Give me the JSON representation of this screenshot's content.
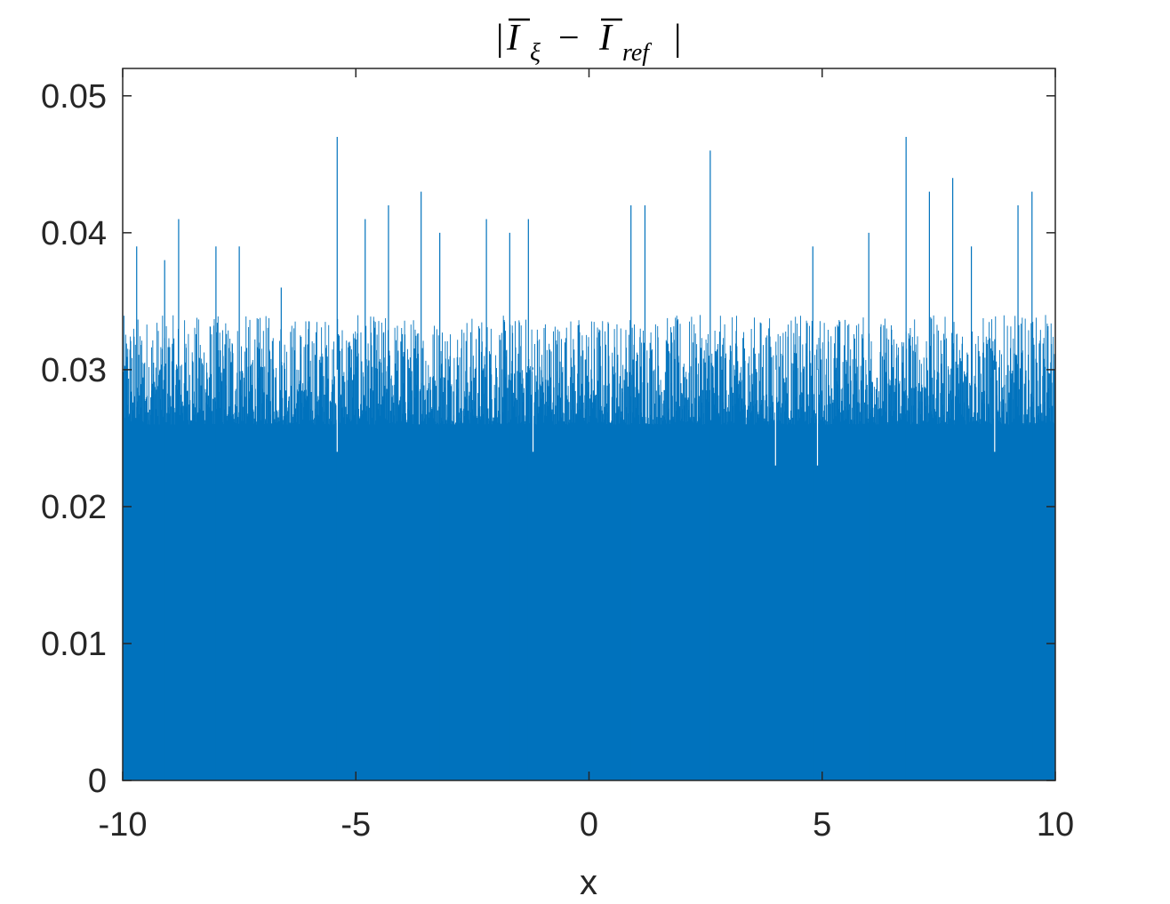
{
  "chart_data": {
    "type": "area",
    "title": "|Ī_ξ − Ī_ref|",
    "title_parts": {
      "bar_left": "|",
      "symbol_1": "I",
      "subscript_1": "ξ",
      "minus": "−",
      "symbol_2": "I",
      "subscript_2": "ref",
      "bar_right": "|"
    },
    "xlabel": "x",
    "ylabel": "",
    "xlim": [
      -10,
      10
    ],
    "ylim": [
      0,
      0.052
    ],
    "xticks": [
      -10,
      -5,
      0,
      5,
      10
    ],
    "xtick_labels": [
      "-10",
      "-5",
      "0",
      "5",
      "10"
    ],
    "yticks": [
      0,
      0.01,
      0.02,
      0.03,
      0.04,
      0.05
    ],
    "ytick_labels": [
      "0",
      "0.01",
      "0.02",
      "0.03",
      "0.04",
      "0.05"
    ],
    "grid": false,
    "series_color": "#0072BD",
    "series": [
      {
        "description": "Dense noisy signal; fill reaches ~0.025-0.027 everywhere, typical spikes to ~0.030-0.035, notable peaks listed",
        "baseline_level": 0.026,
        "typical_upper": 0.032,
        "peaks": [
          {
            "x": -9.7,
            "y": 0.039
          },
          {
            "x": -9.1,
            "y": 0.038
          },
          {
            "x": -8.8,
            "y": 0.041
          },
          {
            "x": -8.0,
            "y": 0.039
          },
          {
            "x": -7.5,
            "y": 0.039
          },
          {
            "x": -6.6,
            "y": 0.036
          },
          {
            "x": -5.4,
            "y": 0.047
          },
          {
            "x": -4.8,
            "y": 0.041
          },
          {
            "x": -4.3,
            "y": 0.042
          },
          {
            "x": -3.6,
            "y": 0.043
          },
          {
            "x": -3.2,
            "y": 0.04
          },
          {
            "x": -2.2,
            "y": 0.041
          },
          {
            "x": -1.7,
            "y": 0.04
          },
          {
            "x": -1.3,
            "y": 0.041
          },
          {
            "x": 0.9,
            "y": 0.042
          },
          {
            "x": 1.2,
            "y": 0.042
          },
          {
            "x": 2.6,
            "y": 0.046
          },
          {
            "x": 4.8,
            "y": 0.039
          },
          {
            "x": 6.0,
            "y": 0.04
          },
          {
            "x": 6.8,
            "y": 0.047
          },
          {
            "x": 7.3,
            "y": 0.043
          },
          {
            "x": 7.8,
            "y": 0.044
          },
          {
            "x": 8.2,
            "y": 0.039
          },
          {
            "x": 9.2,
            "y": 0.042
          },
          {
            "x": 9.5,
            "y": 0.043
          }
        ],
        "dips": [
          {
            "x": -5.4,
            "y": 0.024
          },
          {
            "x": -1.2,
            "y": 0.024
          },
          {
            "x": 4.0,
            "y": 0.023
          },
          {
            "x": 4.9,
            "y": 0.023
          },
          {
            "x": 8.7,
            "y": 0.024
          }
        ]
      }
    ]
  }
}
